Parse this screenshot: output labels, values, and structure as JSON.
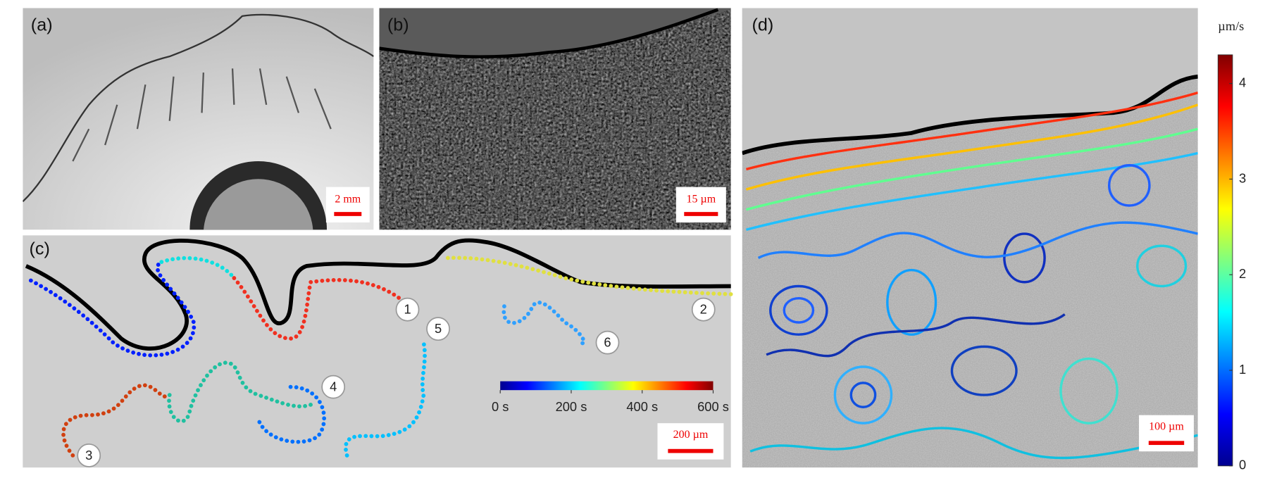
{
  "panels": [
    {
      "label": "(a)",
      "scale_bar": "2 mm"
    },
    {
      "label": "(b)",
      "scale_bar": "15 µm"
    },
    {
      "label": "(c)",
      "scale_bar": "200 µm",
      "track_labels": [
        "1",
        "2",
        "3",
        "4",
        "5",
        "6"
      ],
      "colorbar": {
        "lim": [
          0,
          600
        ],
        "ticks": [
          {
            "value": 0,
            "label": "0 s"
          },
          {
            "value": 200,
            "label": "200 s"
          },
          {
            "value": 400,
            "label": "400 s"
          },
          {
            "value": 600,
            "label": "600 s"
          }
        ]
      }
    },
    {
      "label": "(d)",
      "scale_bar": "100 µm",
      "colorbar": {
        "unit": "µm/s",
        "lim": [
          0,
          4.3
        ],
        "ticks": [
          0,
          1,
          2,
          3,
          4
        ]
      }
    }
  ]
}
